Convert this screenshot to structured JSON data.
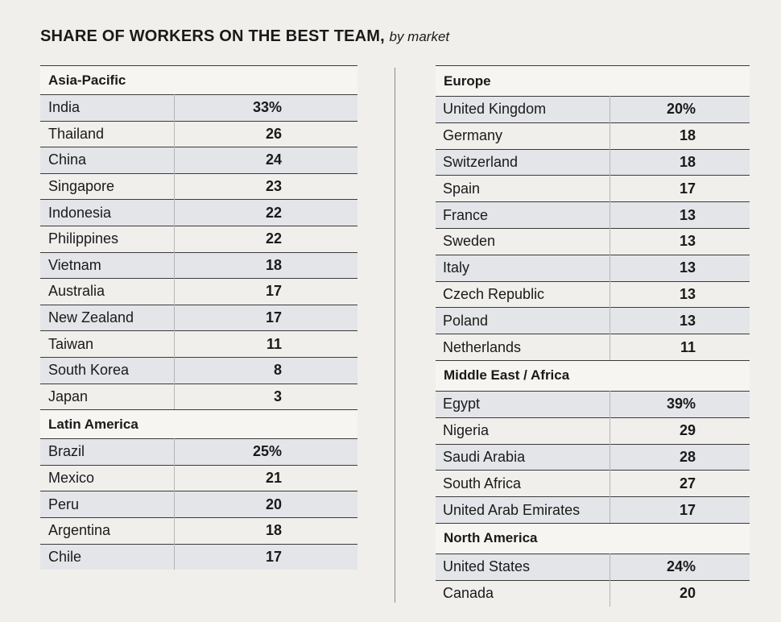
{
  "title": {
    "main": "SHARE OF WORKERS ON THE BEST TEAM,",
    "sub": "by market"
  },
  "chart_data": {
    "type": "table",
    "columns": [
      {
        "groups": [
          {
            "region": "Asia-Pacific",
            "rows": [
              {
                "country": "India",
                "value": "33%"
              },
              {
                "country": "Thailand",
                "value": "26"
              },
              {
                "country": "China",
                "value": "24"
              },
              {
                "country": "Singapore",
                "value": "23"
              },
              {
                "country": "Indonesia",
                "value": "22"
              },
              {
                "country": "Philippines",
                "value": "22"
              },
              {
                "country": "Vietnam",
                "value": "18"
              },
              {
                "country": "Australia",
                "value": "17"
              },
              {
                "country": "New Zealand",
                "value": "17"
              },
              {
                "country": "Taiwan",
                "value": "11"
              },
              {
                "country": "South Korea",
                "value": "8"
              },
              {
                "country": "Japan",
                "value": "3"
              }
            ]
          },
          {
            "region": "Latin America",
            "rows": [
              {
                "country": "Brazil",
                "value": "25%"
              },
              {
                "country": "Mexico",
                "value": "21"
              },
              {
                "country": "Peru",
                "value": "20"
              },
              {
                "country": "Argentina",
                "value": "18"
              },
              {
                "country": "Chile",
                "value": "17"
              }
            ]
          }
        ]
      },
      {
        "groups": [
          {
            "region": "Europe",
            "rows": [
              {
                "country": "United Kingdom",
                "value": "20%"
              },
              {
                "country": "Germany",
                "value": "18"
              },
              {
                "country": "Switzerland",
                "value": "18"
              },
              {
                "country": "Spain",
                "value": "17"
              },
              {
                "country": "France",
                "value": "13"
              },
              {
                "country": "Sweden",
                "value": "13"
              },
              {
                "country": "Italy",
                "value": "13"
              },
              {
                "country": "Czech Republic",
                "value": "13"
              },
              {
                "country": "Poland",
                "value": "13"
              },
              {
                "country": "Netherlands",
                "value": "11"
              }
            ]
          },
          {
            "region": "Middle East / Africa",
            "rows": [
              {
                "country": "Egypt",
                "value": "39%"
              },
              {
                "country": "Nigeria",
                "value": "29"
              },
              {
                "country": "Saudi Arabia",
                "value": "28"
              },
              {
                "country": "South Africa",
                "value": "27"
              },
              {
                "country": "United Arab Emirates",
                "value": "17"
              }
            ]
          },
          {
            "region": "North America",
            "rows": [
              {
                "country": "United States",
                "value": "24%"
              },
              {
                "country": "Canada",
                "value": "20"
              }
            ]
          }
        ]
      }
    ]
  }
}
